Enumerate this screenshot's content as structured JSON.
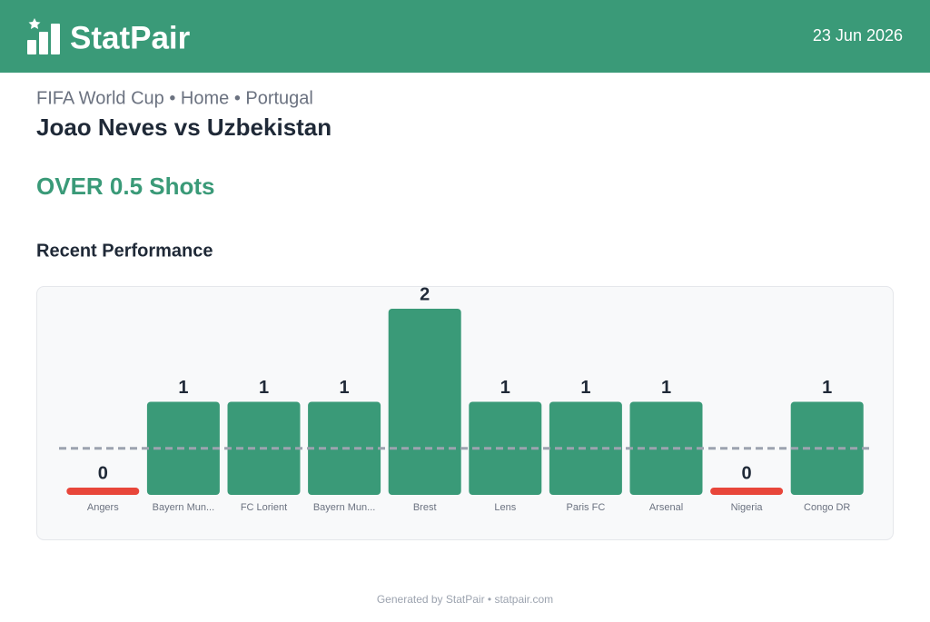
{
  "header": {
    "brand": "StatPair",
    "date": "23 Jun 2026"
  },
  "match": {
    "context": "FIFA World Cup • Home • Portugal",
    "title": "Joao Neves vs Uzbekistan"
  },
  "pick": "OVER 0.5 Shots",
  "section_title": "Recent Performance",
  "chart_data": {
    "type": "bar",
    "categories": [
      "Angers",
      "Bayern Mun...",
      "FC Lorient",
      "Bayern Mun...",
      "Brest",
      "Lens",
      "Paris FC",
      "Arsenal",
      "Nigeria",
      "Congo DR"
    ],
    "values": [
      0,
      1,
      1,
      1,
      2,
      1,
      1,
      1,
      0,
      1
    ],
    "threshold": 0.5,
    "ylim": [
      0,
      2
    ],
    "color": "#3a9a78",
    "miss_color": "#e8463a"
  },
  "footer": "Generated by StatPair • statpair.com"
}
